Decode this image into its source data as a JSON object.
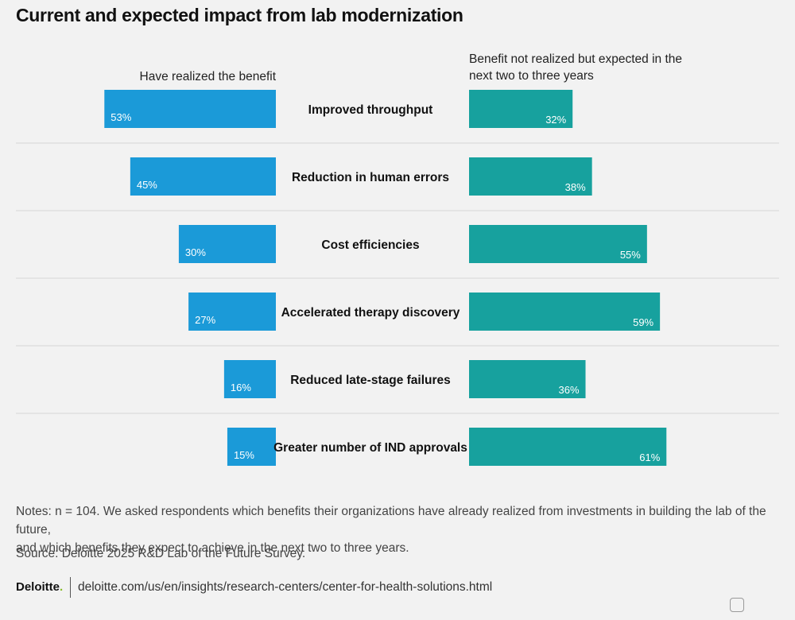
{
  "title": "Current and expected impact from lab modernization",
  "left_header": "Have realized the benefit",
  "right_header_line1": "Benefit not realized but expected in the",
  "right_header_line2": "next two to three years",
  "chart_data": {
    "type": "bar",
    "orientation": "horizontal-diverging",
    "title": "Current and expected impact from lab modernization",
    "categories": [
      "Improved throughput",
      "Reduction in human errors",
      "Cost efficiencies",
      "Accelerated therapy discovery",
      "Reduced late-stage failures",
      "Greater number of IND approvals"
    ],
    "series": [
      {
        "name": "Have realized the benefit",
        "values": [
          53,
          45,
          30,
          27,
          16,
          15
        ],
        "labels": [
          "53%",
          "45%",
          "30%",
          "27%",
          "16%",
          "15%"
        ],
        "color": "#1b9ad8"
      },
      {
        "name": "Benefit not realized but expected in the next two to three years",
        "values": [
          32,
          38,
          55,
          59,
          36,
          61
        ],
        "labels": [
          "32%",
          "38%",
          "55%",
          "59%",
          "36%",
          "61%"
        ],
        "color": "#17a19e"
      }
    ],
    "unit": "%"
  },
  "notes_line1": "Notes: n = 104. We asked respondents which benefits their organizations have already realized from investments in building the lab of the future,",
  "notes_line2": "and which benefits they expect to achieve in the next two to three years.",
  "source": "Source: Deloitte 2025 R&D Lab of the Future Survey.",
  "brand": "Deloitte",
  "brand_dot": ".",
  "url": "deloitte.com/us/en/insights/research-centers/center-for-health-solutions.html"
}
